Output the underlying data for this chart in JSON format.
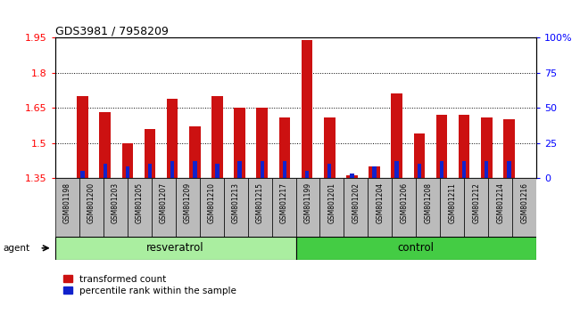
{
  "title": "GDS3981 / 7958209",
  "samples": [
    "GSM801198",
    "GSM801200",
    "GSM801203",
    "GSM801205",
    "GSM801207",
    "GSM801209",
    "GSM801210",
    "GSM801213",
    "GSM801215",
    "GSM801217",
    "GSM801199",
    "GSM801201",
    "GSM801202",
    "GSM801204",
    "GSM801206",
    "GSM801208",
    "GSM801211",
    "GSM801212",
    "GSM801214",
    "GSM801216"
  ],
  "transformed_counts": [
    1.7,
    1.63,
    1.5,
    1.56,
    1.69,
    1.57,
    1.7,
    1.65,
    1.65,
    1.61,
    1.94,
    1.61,
    1.36,
    1.4,
    1.71,
    1.54,
    1.62,
    1.62,
    1.61,
    1.6
  ],
  "percentile_ranks": [
    5.0,
    10.0,
    8.0,
    10.0,
    12.0,
    12.0,
    10.0,
    12.0,
    12.0,
    12.0,
    5.0,
    10.0,
    3.0,
    8.0,
    12.0,
    10.0,
    12.0,
    12.0,
    12.0,
    12.0
  ],
  "groups": [
    "resveratrol",
    "resveratrol",
    "resveratrol",
    "resveratrol",
    "resveratrol",
    "resveratrol",
    "resveratrol",
    "resveratrol",
    "resveratrol",
    "resveratrol",
    "control",
    "control",
    "control",
    "control",
    "control",
    "control",
    "control",
    "control",
    "control",
    "control"
  ],
  "ylim_left": [
    1.35,
    1.95
  ],
  "ylim_right": [
    0,
    100
  ],
  "yticks_left": [
    1.35,
    1.5,
    1.65,
    1.8,
    1.95
  ],
  "yticks_right": [
    0,
    25,
    50,
    75,
    100
  ],
  "ytick_labels_right": [
    "0",
    "25",
    "50",
    "75",
    "100%"
  ],
  "bar_color_red": "#cc1111",
  "bar_color_blue": "#1122cc",
  "bg_color_label": "#bbbbbb",
  "group_resveratrol_color": "#aaeea0",
  "group_control_color": "#44cc44",
  "legend_red": "transformed count",
  "legend_blue": "percentile rank within the sample",
  "baseline": 1.35
}
